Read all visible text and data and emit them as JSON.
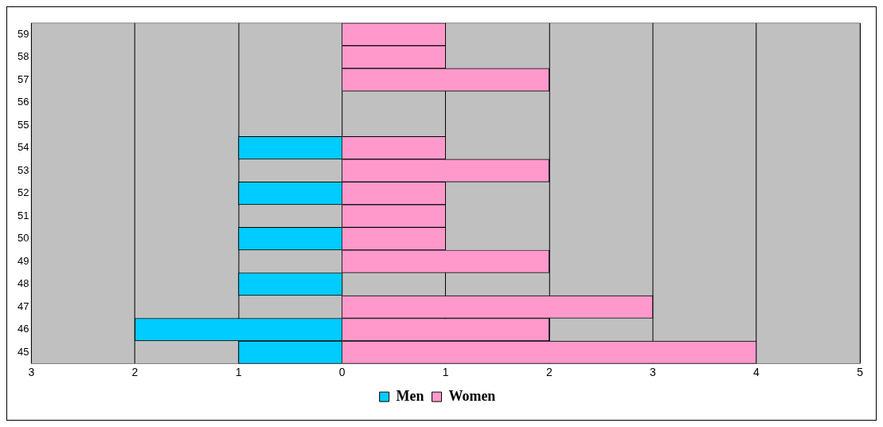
{
  "chart_data": {
    "type": "bar",
    "orientation": "horizontal",
    "stacked": true,
    "categories": [
      "59",
      "58",
      "57",
      "56",
      "55",
      "54",
      "53",
      "52",
      "51",
      "50",
      "49",
      "48",
      "47",
      "46",
      "45"
    ],
    "series": [
      {
        "name": "Men",
        "color": "#00ccff",
        "values": [
          0,
          0,
          0,
          0,
          0,
          -1,
          0,
          -1,
          0,
          -1,
          0,
          -1,
          0,
          -2,
          -1
        ]
      },
      {
        "name": "Women",
        "color": "#ff99cc",
        "values": [
          1,
          1,
          2,
          0,
          0,
          1,
          2,
          1,
          1,
          1,
          2,
          0,
          3,
          2,
          4
        ]
      }
    ],
    "xlim": [
      -3,
      5
    ],
    "xticks": [
      {
        "value": -3,
        "label": "3"
      },
      {
        "value": -2,
        "label": "2"
      },
      {
        "value": -1,
        "label": "1"
      },
      0,
      1,
      2,
      3,
      4,
      5
    ],
    "grid": "x",
    "legend": "bottom"
  }
}
